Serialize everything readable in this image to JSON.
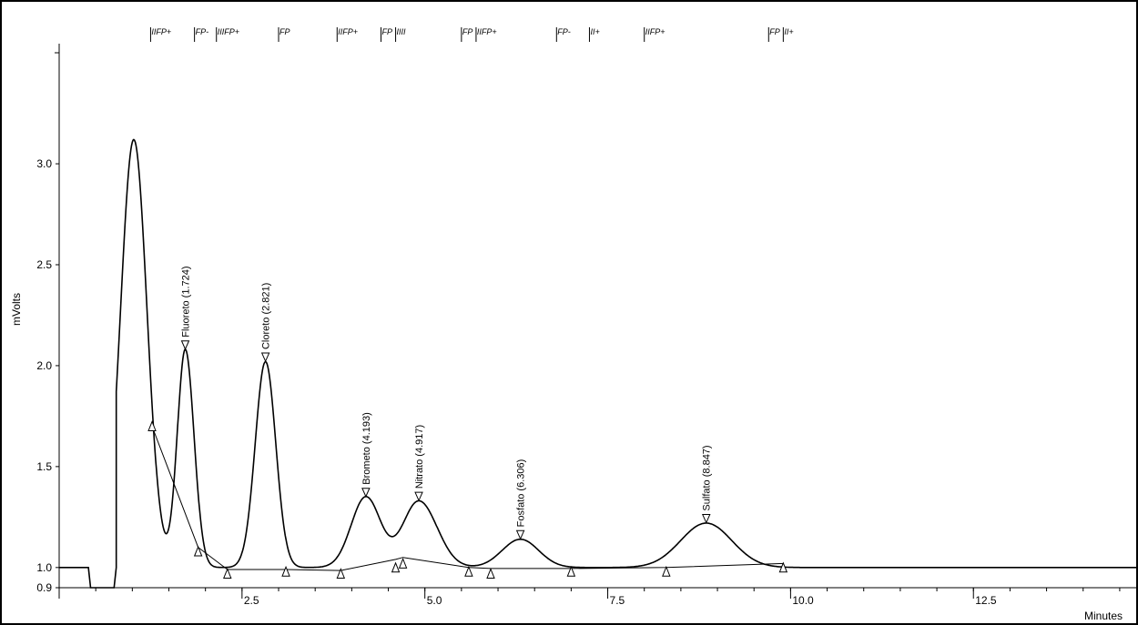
{
  "chart_data": {
    "type": "line",
    "xlabel": "Minutes",
    "ylabel": "mVolts",
    "xlim": [
      0,
      14.75
    ],
    "ylim": [
      0.9,
      3.55
    ],
    "x_ticks": [
      {
        "value": 2.5,
        "label": "2.5"
      },
      {
        "value": 5.0,
        "label": "5.0"
      },
      {
        "value": 7.5,
        "label": "7.5"
      },
      {
        "value": 10.0,
        "label": "10.0"
      },
      {
        "value": 12.5,
        "label": "12.5"
      }
    ],
    "y_ticks": [
      {
        "value": 0.9,
        "label": "0.9"
      },
      {
        "value": 1.0,
        "label": "1.0"
      },
      {
        "value": 1.5,
        "label": "1.5"
      },
      {
        "value": 2.0,
        "label": "2.0"
      },
      {
        "value": 2.5,
        "label": "2.5"
      },
      {
        "value": 3.0,
        "label": "3.0"
      }
    ],
    "baseline": 1.0,
    "trace_segments": [
      {
        "x": [
          0,
          0.4,
          0.43,
          0.75,
          0.78
        ],
        "y": [
          1.0,
          1.0,
          0.9,
          0.9,
          1.0
        ]
      }
    ],
    "peaks": [
      {
        "label": "",
        "rt": 1.02,
        "apex": 3.12,
        "width_left": 0.18,
        "width_right": 0.18
      },
      {
        "label": "Fluoreto (1.724)",
        "rt": 1.724,
        "apex": 2.08,
        "width_left": 0.11,
        "width_right": 0.12
      },
      {
        "label": "Cloreto (2.821)",
        "rt": 2.821,
        "apex": 2.02,
        "width_left": 0.14,
        "width_right": 0.14
      },
      {
        "label": "Brometo (4.193)",
        "rt": 4.193,
        "apex": 1.35,
        "width_left": 0.2,
        "width_right": 0.2
      },
      {
        "label": "Nitrato (4.917)",
        "rt": 4.917,
        "apex": 1.33,
        "width_left": 0.22,
        "width_right": 0.25
      },
      {
        "label": "Fosfato (6.306)",
        "rt": 6.306,
        "apex": 1.14,
        "width_left": 0.25,
        "width_right": 0.25
      },
      {
        "label": "Sulfato (8.847)",
        "rt": 8.847,
        "apex": 1.22,
        "width_left": 0.35,
        "width_right": 0.35
      }
    ],
    "apex_markers": [
      {
        "x": 1.724,
        "y": 2.1
      },
      {
        "x": 2.821,
        "y": 2.04
      },
      {
        "x": 4.193,
        "y": 1.37
      },
      {
        "x": 4.917,
        "y": 1.35
      },
      {
        "x": 6.306,
        "y": 1.16
      },
      {
        "x": 8.847,
        "y": 1.24
      }
    ],
    "baseline_markers": [
      {
        "x": 1.27,
        "y": 1.7
      },
      {
        "x": 1.9,
        "y": 1.08
      },
      {
        "x": 2.3,
        "y": 0.97
      },
      {
        "x": 3.1,
        "y": 0.98
      },
      {
        "x": 3.85,
        "y": 0.97
      },
      {
        "x": 4.6,
        "y": 1.0
      },
      {
        "x": 4.7,
        "y": 1.02
      },
      {
        "x": 5.6,
        "y": 0.98
      },
      {
        "x": 5.9,
        "y": 0.97
      },
      {
        "x": 7.0,
        "y": 0.98
      },
      {
        "x": 8.3,
        "y": 0.98
      },
      {
        "x": 9.9,
        "y": 1.0
      }
    ],
    "baseline_lines": [
      {
        "x": [
          1.27,
          1.9,
          2.3,
          3.1,
          3.85,
          4.6,
          4.7,
          5.6,
          5.9,
          7.0,
          8.3,
          9.9
        ],
        "y": [
          1.7,
          1.1,
          0.99,
          0.99,
          0.985,
          1.04,
          1.05,
          1.0,
          0.995,
          0.995,
          1.0,
          1.02
        ]
      }
    ],
    "event_marks": [
      {
        "x": 1.25,
        "label": "IIFP+"
      },
      {
        "x": 1.85,
        "label": "FP-"
      },
      {
        "x": 2.15,
        "label": "IIIFP+"
      },
      {
        "x": 3.0,
        "label": "FP"
      },
      {
        "x": 3.8,
        "label": "IIFP+"
      },
      {
        "x": 4.4,
        "label": "FP"
      },
      {
        "x": 4.6,
        "label": "IIII"
      },
      {
        "x": 5.5,
        "label": "FP"
      },
      {
        "x": 5.7,
        "label": "IIFP+"
      },
      {
        "x": 6.8,
        "label": "FP-"
      },
      {
        "x": 7.25,
        "label": "II+"
      },
      {
        "x": 8.0,
        "label": "IIFP+"
      },
      {
        "x": 9.7,
        "label": "FP"
      },
      {
        "x": 9.9,
        "label": "II+"
      }
    ]
  }
}
